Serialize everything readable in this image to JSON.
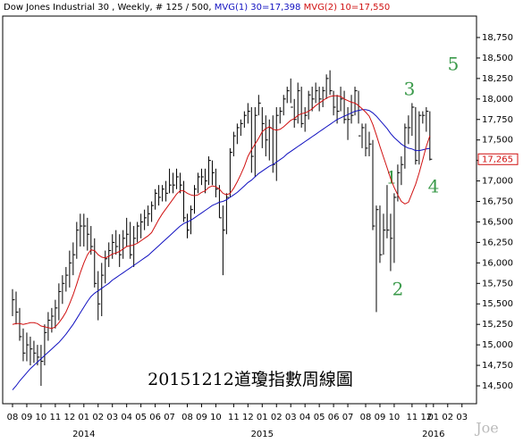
{
  "chart_data": {
    "type": "ohlc",
    "title": "Dow Jones Industrial 30 , Weekly, # 125 / 500,",
    "ma1_label": "MVG(1) 30=17,398",
    "ma2_label": "MVG(2) 10=17,550",
    "bar_color": "#000000",
    "ma1_color": "#1010c0",
    "ma2_color": "#d01010",
    "ylim": [
      14500,
      18750
    ],
    "yticks": [
      {
        "value": 14500,
        "label": "14,500"
      },
      {
        "value": 14750,
        "label": "14,750"
      },
      {
        "value": 15000,
        "label": "15,000"
      },
      {
        "value": 15250,
        "label": "15,250"
      },
      {
        "value": 15500,
        "label": "15,500"
      },
      {
        "value": 15750,
        "label": "15,750"
      },
      {
        "value": 16000,
        "label": "16,000"
      },
      {
        "value": 16250,
        "label": "16,250"
      },
      {
        "value": 16500,
        "label": "16,500"
      },
      {
        "value": 16750,
        "label": "16,750"
      },
      {
        "value": 17000,
        "label": "17,000"
      },
      {
        "value": 17250,
        "label": "17,250"
      },
      {
        "value": 17500,
        "label": "17,500"
      },
      {
        "value": 17750,
        "label": "17,750"
      },
      {
        "value": 18000,
        "label": "18,000"
      },
      {
        "value": 18250,
        "label": "18,250"
      },
      {
        "value": 18500,
        "label": "18,500"
      },
      {
        "value": 18750,
        "label": "18,750"
      }
    ],
    "last": {
      "value": 17265,
      "label": "17,265"
    },
    "months": [
      {
        "label": "08",
        "bars": [
          [
            15680,
            15350,
            15550,
            15250,
            14450
          ],
          [
            15650,
            15250,
            15400,
            15260,
            14500
          ],
          [
            15450,
            15050,
            15100,
            15260,
            14560
          ],
          [
            15200,
            14800,
            14900,
            15250,
            14610
          ]
        ]
      },
      {
        "label": "09",
        "bars": [
          [
            15150,
            14800,
            15000,
            15260,
            14660
          ],
          [
            15100,
            14750,
            14950,
            15270,
            14710
          ],
          [
            15050,
            14780,
            14900,
            15270,
            14750
          ],
          [
            15000,
            14750,
            14850,
            15260,
            14790
          ]
        ]
      },
      {
        "label": "10",
        "bars": [
          [
            15000,
            14500,
            14800,
            15230,
            14830
          ],
          [
            15250,
            14750,
            15150,
            15220,
            14870
          ],
          [
            15400,
            15050,
            15300,
            15210,
            14910
          ],
          [
            15450,
            15150,
            15350,
            15200,
            14950
          ]
        ]
      },
      {
        "label": "11",
        "bars": [
          [
            15550,
            15200,
            15450,
            15220,
            14990
          ],
          [
            15750,
            15300,
            15650,
            15270,
            15030
          ],
          [
            15850,
            15500,
            15750,
            15330,
            15080
          ],
          [
            15950,
            15650,
            15850,
            15400,
            15130
          ]
        ]
      },
      {
        "label": "12",
        "bars": [
          [
            16150,
            15700,
            16000,
            15500,
            15190
          ],
          [
            16250,
            15850,
            16100,
            15610,
            15250
          ],
          [
            16500,
            16050,
            16400,
            15740,
            15320
          ],
          [
            16600,
            16200,
            16450,
            15880,
            15390
          ]
        ]
      },
      {
        "label": "01",
        "year": "2014",
        "bars": [
          [
            16600,
            16200,
            16450,
            16000,
            15460
          ],
          [
            16550,
            16150,
            16350,
            16100,
            15530
          ],
          [
            16450,
            16100,
            16200,
            16160,
            15590
          ],
          [
            16300,
            15700,
            15750,
            16150,
            15630
          ]
        ]
      },
      {
        "label": "02",
        "bars": [
          [
            15900,
            15300,
            15500,
            16100,
            15660
          ],
          [
            16000,
            15350,
            15850,
            16070,
            15690
          ],
          [
            16150,
            15750,
            16050,
            16060,
            15720
          ],
          [
            16250,
            15950,
            16150,
            16080,
            15750
          ]
        ]
      },
      {
        "label": "03",
        "bars": [
          [
            16350,
            16050,
            16250,
            16110,
            15790
          ],
          [
            16400,
            16100,
            16200,
            16120,
            15820
          ],
          [
            16350,
            15950,
            16100,
            16140,
            15850
          ],
          [
            16400,
            16050,
            16300,
            16170,
            15880
          ]
        ]
      },
      {
        "label": "04",
        "bars": [
          [
            16550,
            16200,
            16350,
            16200,
            15910
          ],
          [
            16500,
            16050,
            16100,
            16210,
            15940
          ],
          [
            16450,
            15950,
            16300,
            16220,
            15970
          ],
          [
            16500,
            16250,
            16450,
            16240,
            16000
          ]
        ]
      },
      {
        "label": "05",
        "bars": [
          [
            16600,
            16300,
            16500,
            16270,
            16030
          ],
          [
            16650,
            16400,
            16550,
            16300,
            16060
          ],
          [
            16700,
            16450,
            16600,
            16330,
            16090
          ],
          [
            16750,
            16500,
            16700,
            16370,
            16130
          ]
        ]
      },
      {
        "label": "06",
        "bars": [
          [
            16900,
            16650,
            16850,
            16450,
            16170
          ],
          [
            16950,
            16700,
            16800,
            16530,
            16210
          ],
          [
            16950,
            16750,
            16900,
            16600,
            16250
          ],
          [
            17000,
            16750,
            16850,
            16660,
            16290
          ]
        ]
      },
      {
        "label": "07",
        "bars": [
          [
            17150,
            16850,
            16950,
            16720,
            16330
          ],
          [
            17100,
            16850,
            16950,
            16780,
            16370
          ],
          [
            17150,
            16900,
            17050,
            16840,
            16410
          ],
          [
            17100,
            16850,
            16950,
            16880,
            16450
          ],
          [
            17000,
            16500,
            16550,
            16880,
            16480
          ]
        ]
      },
      {
        "label": "08",
        "bars": [
          [
            16600,
            16300,
            16400,
            16850,
            16500
          ],
          [
            16700,
            16350,
            16650,
            16830,
            16520
          ],
          [
            16950,
            16600,
            16900,
            16820,
            16550
          ],
          [
            17100,
            16850,
            17050,
            16830,
            16580
          ]
        ]
      },
      {
        "label": "09",
        "bars": [
          [
            17150,
            16950,
            17050,
            16860,
            16610
          ],
          [
            17150,
            16850,
            17000,
            16880,
            16640
          ],
          [
            17300,
            16950,
            17250,
            16920,
            16670
          ],
          [
            17250,
            16950,
            17100,
            16940,
            16700
          ]
        ]
      },
      {
        "label": "10",
        "bars": [
          [
            17150,
            16800,
            16900,
            16930,
            16720
          ],
          [
            16950,
            16550,
            16550,
            16900,
            16740
          ],
          [
            16700,
            15850,
            16400,
            16850,
            16750
          ],
          [
            16850,
            16350,
            16800,
            16830,
            16770
          ],
          [
            17400,
            16800,
            17350,
            16850,
            16800
          ]
        ]
      },
      {
        "label": "11",
        "bars": [
          [
            17600,
            17300,
            17550,
            16910,
            16830
          ],
          [
            17700,
            17450,
            17650,
            16990,
            16860
          ],
          [
            17750,
            17550,
            17700,
            17080,
            16900
          ],
          [
            17850,
            17650,
            17800,
            17180,
            16940
          ]
        ]
      },
      {
        "label": "12",
        "bars": [
          [
            17950,
            17700,
            17850,
            17300,
            16980
          ],
          [
            17900,
            17100,
            17300,
            17380,
            17010
          ],
          [
            17900,
            17050,
            17800,
            17450,
            17050
          ],
          [
            18050,
            17800,
            17950,
            17520,
            17090
          ]
        ]
      },
      {
        "label": "01",
        "year": "2015",
        "bars": [
          [
            17900,
            17400,
            17700,
            17600,
            17120
          ],
          [
            17800,
            17300,
            17500,
            17640,
            17150
          ],
          [
            17750,
            17250,
            17650,
            17660,
            17180
          ],
          [
            17800,
            17100,
            17200,
            17630,
            17200
          ]
        ]
      },
      {
        "label": "02",
        "bars": [
          [
            17900,
            17000,
            17800,
            17620,
            17230
          ],
          [
            17900,
            17700,
            17850,
            17630,
            17260
          ],
          [
            18050,
            17800,
            18000,
            17660,
            17290
          ],
          [
            18150,
            17950,
            18100,
            17700,
            17330
          ]
        ]
      },
      {
        "label": "03",
        "bars": [
          [
            18250,
            17950,
            17900,
            17740,
            17360
          ],
          [
            18000,
            17650,
            17750,
            17760,
            17390
          ],
          [
            18200,
            17700,
            18100,
            17800,
            17420
          ],
          [
            18150,
            17650,
            17700,
            17820,
            17450
          ]
        ]
      },
      {
        "label": "04",
        "bars": [
          [
            17900,
            17600,
            17800,
            17830,
            17480
          ],
          [
            18100,
            17750,
            18050,
            17850,
            17510
          ],
          [
            18150,
            17850,
            18000,
            17880,
            17540
          ],
          [
            18200,
            17950,
            18100,
            17920,
            17570
          ]
        ]
      },
      {
        "label": "05",
        "bars": [
          [
            18150,
            17850,
            18000,
            17950,
            17600
          ],
          [
            18150,
            17900,
            18100,
            17980,
            17630
          ],
          [
            18300,
            18000,
            18250,
            18010,
            17660
          ],
          [
            18350,
            18050,
            18100,
            18030,
            17690
          ]
        ]
      },
      {
        "label": "06",
        "bars": [
          [
            18100,
            17800,
            17900,
            18040,
            17720
          ],
          [
            18050,
            17700,
            17850,
            18040,
            17750
          ],
          [
            18150,
            17850,
            18000,
            18030,
            17770
          ],
          [
            18100,
            17700,
            17750,
            18000,
            17790
          ]
        ]
      },
      {
        "label": "07",
        "bars": [
          [
            17900,
            17500,
            17750,
            17980,
            17810
          ],
          [
            18050,
            17700,
            17800,
            17960,
            17830
          ],
          [
            18150,
            17800,
            18100,
            17950,
            17850
          ],
          [
            18100,
            17700,
            17550,
            17920,
            17860
          ],
          [
            17700,
            17400,
            17650,
            17880,
            17870
          ]
        ]
      },
      {
        "label": "08",
        "bars": [
          [
            17700,
            17300,
            17400,
            17840,
            17870
          ],
          [
            17600,
            17300,
            17450,
            17790,
            17860
          ],
          [
            17500,
            16400,
            16450,
            17690,
            17830
          ],
          [
            16700,
            15400,
            16650,
            17560,
            17790
          ]
        ]
      },
      {
        "label": "09",
        "bars": [
          [
            16700,
            16000,
            16100,
            17420,
            17740
          ],
          [
            16600,
            16100,
            16400,
            17290,
            17690
          ],
          [
            16950,
            16300,
            16400,
            17160,
            17640
          ],
          [
            16600,
            15900,
            16300,
            17030,
            17580
          ]
        ]
      },
      {
        "label": "10",
        "bars": [
          [
            16850,
            16000,
            16800,
            16920,
            17530
          ],
          [
            17200,
            16750,
            17100,
            16830,
            17490
          ],
          [
            17300,
            16950,
            17200,
            16750,
            17450
          ],
          [
            17700,
            17150,
            17650,
            16720,
            17420
          ],
          [
            17800,
            17450,
            17650,
            16740,
            17400
          ]
        ]
      },
      {
        "label": "11",
        "bars": [
          [
            17950,
            17550,
            17900,
            16850,
            17390
          ],
          [
            17900,
            17200,
            17250,
            16960,
            17370
          ],
          [
            17850,
            17200,
            17800,
            17100,
            17370
          ],
          [
            17850,
            17700,
            17800,
            17260,
            17380
          ]
        ]
      },
      {
        "label": "12",
        "bars": [
          [
            17900,
            17600,
            17850,
            17420,
            17390
          ],
          [
            17850,
            17250,
            17265,
            17550,
            17398
          ]
        ]
      },
      {
        "label": "01",
        "year": "2016",
        "bars": []
      },
      {
        "label": "02",
        "bars": []
      },
      {
        "label": "03",
        "bars": []
      }
    ],
    "annotations": [
      "1",
      "2",
      "3",
      "4",
      "5"
    ],
    "caption": "20151212道瓊指數周線圖",
    "watermark": "Joe"
  }
}
